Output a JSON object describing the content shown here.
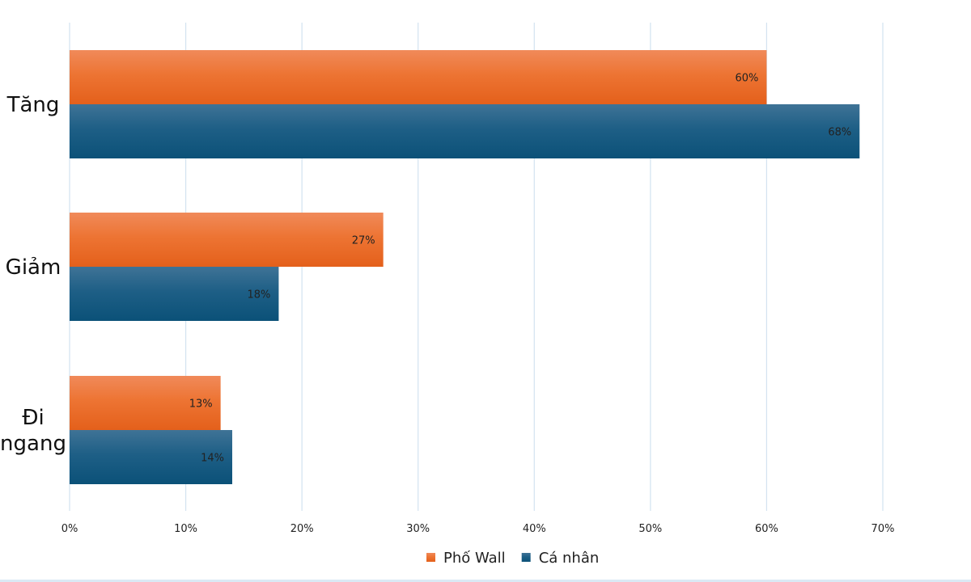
{
  "chart_data": {
    "type": "bar",
    "orientation": "horizontal",
    "categories": [
      "Tăng",
      "Giảm",
      "Đi ngang"
    ],
    "series": [
      {
        "name": "Phố Wall",
        "values": [
          60,
          27,
          13
        ],
        "color": "#ec6a25"
      },
      {
        "name": "Cá nhân",
        "values": [
          68,
          18,
          14
        ],
        "color": "#1b5f85"
      }
    ],
    "value_suffix": "%",
    "xlim": [
      0,
      70
    ],
    "x_ticks": [
      "0%",
      "10%",
      "20%",
      "30%",
      "40%",
      "50%",
      "60%",
      "70%"
    ],
    "grid": "vertical",
    "legend_position": "bottom"
  }
}
